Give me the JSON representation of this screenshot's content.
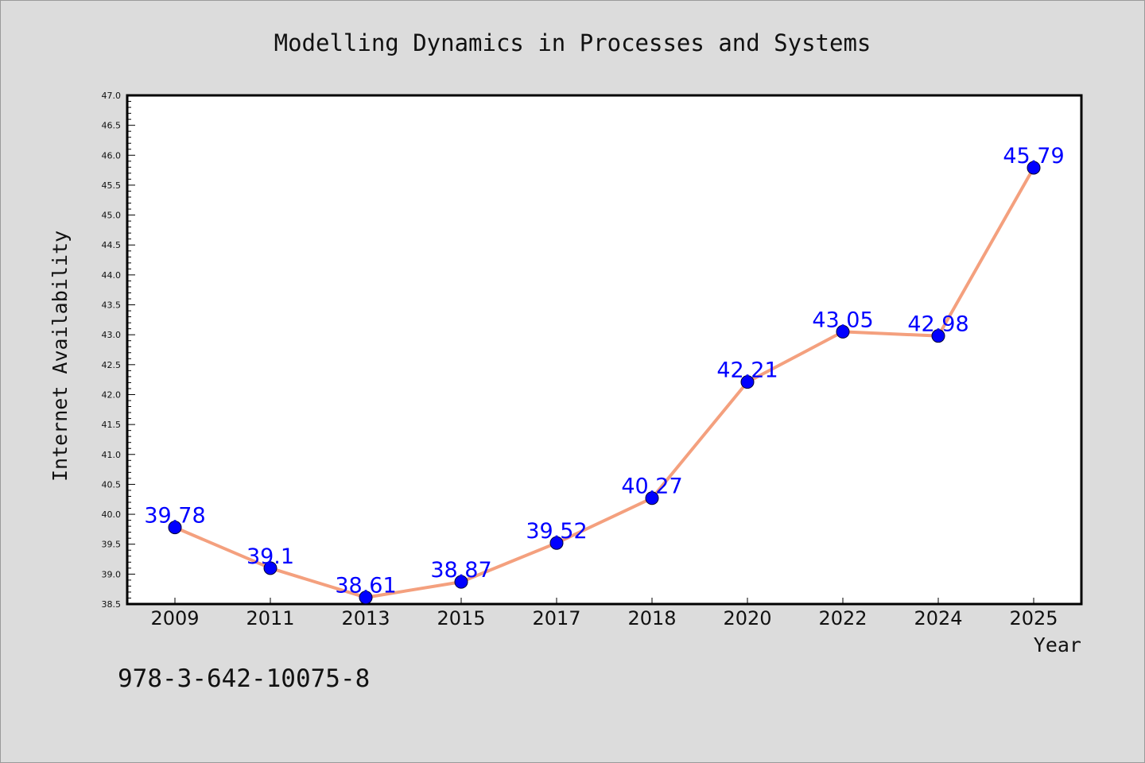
{
  "chart_data": {
    "type": "line",
    "title": "Modelling Dynamics in Processes and Systems",
    "xlabel": "Year",
    "ylabel": "Internet Availability",
    "categories": [
      "2009",
      "2011",
      "2013",
      "2015",
      "2017",
      "2018",
      "2020",
      "2022",
      "2024",
      "2025"
    ],
    "series": [
      {
        "values": [
          39.78,
          39.1,
          38.61,
          38.87,
          39.52,
          40.27,
          42.21,
          43.05,
          42.98,
          45.79
        ],
        "data_labels": [
          "39.78",
          "39.1",
          "38.61",
          "38.87",
          "39.52",
          "40.27",
          "42.21",
          "43.05",
          "42.98",
          "45.79"
        ]
      }
    ],
    "ylim": [
      38.5,
      47.0
    ],
    "ytick_labels": [
      "38.5",
      "39.0",
      "39.5",
      "40.0",
      "40.5",
      "41.0",
      "41.5",
      "42.0",
      "42.5",
      "43.0",
      "43.5",
      "44.0",
      "44.5",
      "45.0",
      "45.5",
      "46.0",
      "46.5",
      "47.0"
    ],
    "grid": false,
    "legend": "none",
    "colors": {
      "line": "#f4a07e",
      "marker": "#0000ff",
      "data_label": "#0000ff",
      "plot_background": "#ffffff",
      "figure_background": "#dcdcdc"
    }
  },
  "footer": {
    "isbn": "978-3-642-10075-8"
  }
}
